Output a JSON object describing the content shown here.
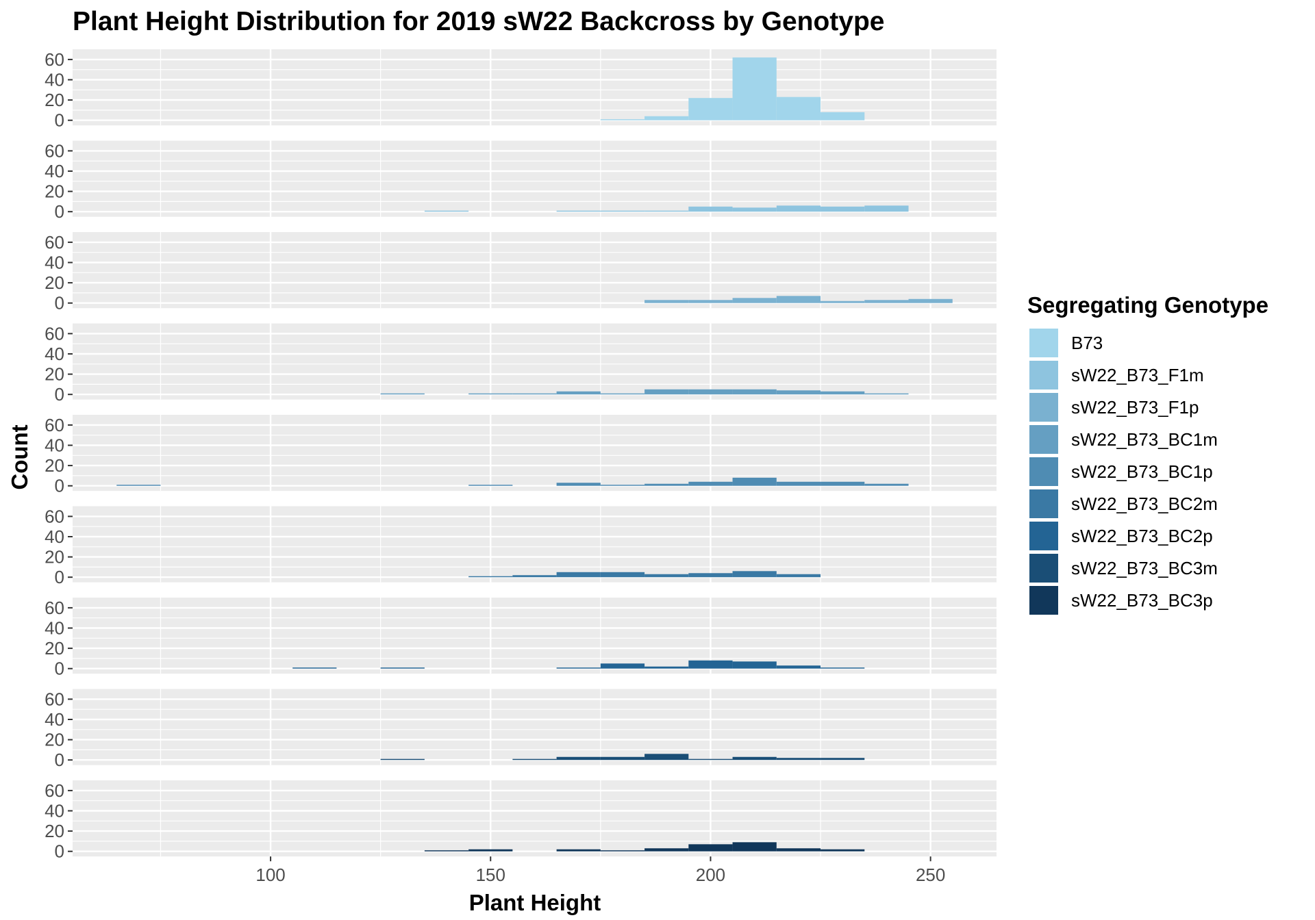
{
  "chart_data": {
    "type": "bar",
    "subtype": "faceted-histogram",
    "title": "Plant Height Distribution for 2019 sW22 Backcross by Genotype",
    "xlabel": "Plant Height",
    "ylabel": "Count",
    "xlim": [
      55,
      265
    ],
    "ylim": [
      0,
      65
    ],
    "x_ticks": [
      100,
      150,
      200,
      250
    ],
    "y_ticks": [
      0,
      20,
      40,
      60
    ],
    "bin_width": 10,
    "grid": true,
    "legend": {
      "title": "Segregating Genotype",
      "position": "right"
    },
    "series": [
      {
        "name": "B73",
        "color": "#a1d5eb",
        "bins": [
          {
            "x": 180,
            "count": 1
          },
          {
            "x": 190,
            "count": 4
          },
          {
            "x": 200,
            "count": 22
          },
          {
            "x": 210,
            "count": 62
          },
          {
            "x": 220,
            "count": 23
          },
          {
            "x": 230,
            "count": 8
          }
        ]
      },
      {
        "name": "sW22_B73_F1m",
        "color": "#8ec4df",
        "bins": [
          {
            "x": 140,
            "count": 1
          },
          {
            "x": 170,
            "count": 1
          },
          {
            "x": 180,
            "count": 1
          },
          {
            "x": 190,
            "count": 1
          },
          {
            "x": 200,
            "count": 5
          },
          {
            "x": 210,
            "count": 4
          },
          {
            "x": 220,
            "count": 6
          },
          {
            "x": 230,
            "count": 5
          },
          {
            "x": 240,
            "count": 6
          }
        ]
      },
      {
        "name": "sW22_B73_F1p",
        "color": "#7ab1d0",
        "bins": [
          {
            "x": 190,
            "count": 3
          },
          {
            "x": 200,
            "count": 3
          },
          {
            "x": 210,
            "count": 5
          },
          {
            "x": 220,
            "count": 7
          },
          {
            "x": 230,
            "count": 2
          },
          {
            "x": 240,
            "count": 3
          },
          {
            "x": 250,
            "count": 4
          }
        ]
      },
      {
        "name": "sW22_B73_BC1m",
        "color": "#659fc2",
        "bins": [
          {
            "x": 130,
            "count": 1
          },
          {
            "x": 150,
            "count": 1
          },
          {
            "x": 160,
            "count": 1
          },
          {
            "x": 170,
            "count": 3
          },
          {
            "x": 180,
            "count": 1
          },
          {
            "x": 190,
            "count": 5
          },
          {
            "x": 200,
            "count": 5
          },
          {
            "x": 210,
            "count": 5
          },
          {
            "x": 220,
            "count": 4
          },
          {
            "x": 230,
            "count": 3
          },
          {
            "x": 240,
            "count": 1
          }
        ]
      },
      {
        "name": "sW22_B73_BC1p",
        "color": "#4f8cb3",
        "bins": [
          {
            "x": 70,
            "count": 1
          },
          {
            "x": 150,
            "count": 1
          },
          {
            "x": 170,
            "count": 3
          },
          {
            "x": 180,
            "count": 1
          },
          {
            "x": 190,
            "count": 2
          },
          {
            "x": 200,
            "count": 4
          },
          {
            "x": 210,
            "count": 8
          },
          {
            "x": 220,
            "count": 4
          },
          {
            "x": 230,
            "count": 4
          },
          {
            "x": 240,
            "count": 2
          }
        ]
      },
      {
        "name": "sW22_B73_BC2m",
        "color": "#3a79a4",
        "bins": [
          {
            "x": 150,
            "count": 1
          },
          {
            "x": 160,
            "count": 2
          },
          {
            "x": 170,
            "count": 5
          },
          {
            "x": 180,
            "count": 5
          },
          {
            "x": 190,
            "count": 3
          },
          {
            "x": 200,
            "count": 4
          },
          {
            "x": 210,
            "count": 6
          },
          {
            "x": 220,
            "count": 3
          }
        ]
      },
      {
        "name": "sW22_B73_BC2p",
        "color": "#236494",
        "bins": [
          {
            "x": 110,
            "count": 1
          },
          {
            "x": 130,
            "count": 1
          },
          {
            "x": 170,
            "count": 1
          },
          {
            "x": 180,
            "count": 5
          },
          {
            "x": 190,
            "count": 2
          },
          {
            "x": 200,
            "count": 8
          },
          {
            "x": 210,
            "count": 7
          },
          {
            "x": 220,
            "count": 3
          },
          {
            "x": 230,
            "count": 1
          }
        ]
      },
      {
        "name": "sW22_B73_BC3m",
        "color": "#1a4e76",
        "bins": [
          {
            "x": 130,
            "count": 1
          },
          {
            "x": 160,
            "count": 1
          },
          {
            "x": 170,
            "count": 3
          },
          {
            "x": 180,
            "count": 3
          },
          {
            "x": 190,
            "count": 6
          },
          {
            "x": 200,
            "count": 1
          },
          {
            "x": 210,
            "count": 3
          },
          {
            "x": 220,
            "count": 2
          },
          {
            "x": 230,
            "count": 2
          }
        ]
      },
      {
        "name": "sW22_B73_BC3p",
        "color": "#11375a",
        "bins": [
          {
            "x": 140,
            "count": 1
          },
          {
            "x": 150,
            "count": 2
          },
          {
            "x": 170,
            "count": 2
          },
          {
            "x": 180,
            "count": 1
          },
          {
            "x": 190,
            "count": 3
          },
          {
            "x": 200,
            "count": 7
          },
          {
            "x": 210,
            "count": 9
          },
          {
            "x": 220,
            "count": 3
          },
          {
            "x": 230,
            "count": 2
          }
        ]
      }
    ]
  }
}
